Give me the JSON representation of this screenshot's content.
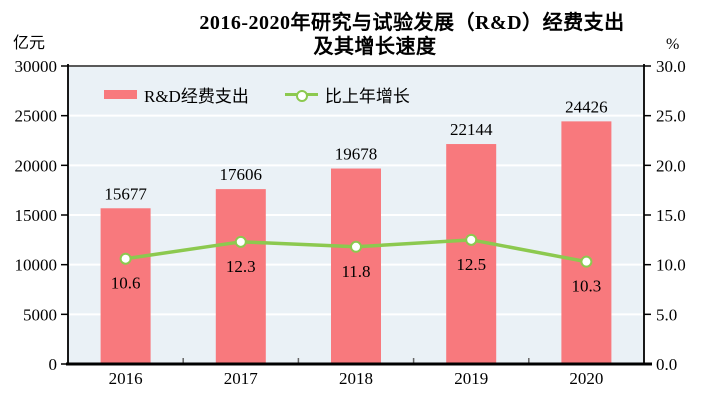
{
  "header": {
    "title_line1": "2016-2020年研究与试验发展（R&D）经费支出",
    "title_line2": "及其增长速度",
    "left_unit": "亿元",
    "right_unit": "%"
  },
  "legend": {
    "bar_label": "R&D经费支出",
    "line_label": "比上年增长"
  },
  "chart_data": {
    "type": "bar",
    "title": "2016-2020年研究与试验发展（R&D）经费支出及其增长速度",
    "categories": [
      "2016",
      "2017",
      "2018",
      "2019",
      "2020"
    ],
    "series": [
      {
        "name": "R&D经费支出",
        "type": "bar",
        "axis": "left",
        "values": [
          15677,
          17606,
          19678,
          22144,
          24426
        ],
        "color": "#f8797d"
      },
      {
        "name": "比上年增长",
        "type": "line",
        "axis": "right",
        "values": [
          10.6,
          12.3,
          11.8,
          12.5,
          10.3
        ],
        "color": "#8cc94f"
      }
    ],
    "value_labels": {
      "bar": [
        "15677",
        "17606",
        "19678",
        "22144",
        "24426"
      ],
      "line": [
        "10.6",
        "12.3",
        "11.8",
        "12.5",
        "10.3"
      ]
    },
    "left_axis": {
      "unit": "亿元",
      "min": 0,
      "max": 30000,
      "step": 5000,
      "ticks": [
        "0",
        "5000",
        "10000",
        "15000",
        "20000",
        "25000",
        "30000"
      ]
    },
    "right_axis": {
      "unit": "%",
      "min": 0,
      "max": 30,
      "step": 5,
      "ticks": [
        "0.0",
        "5.0",
        "10.0",
        "15.0",
        "20.0",
        "25.0",
        "30.0"
      ]
    },
    "colors": {
      "bar": "#f8797d",
      "line": "#8cc94f",
      "marker_fill": "#ffffff",
      "plot_bg": "#eaf1f6",
      "gridline": "#ffffff",
      "axis": "#000000",
      "top_border": "#595959",
      "inner_tick": "#666666"
    },
    "grid": true,
    "legend_position": "top-inside"
  }
}
